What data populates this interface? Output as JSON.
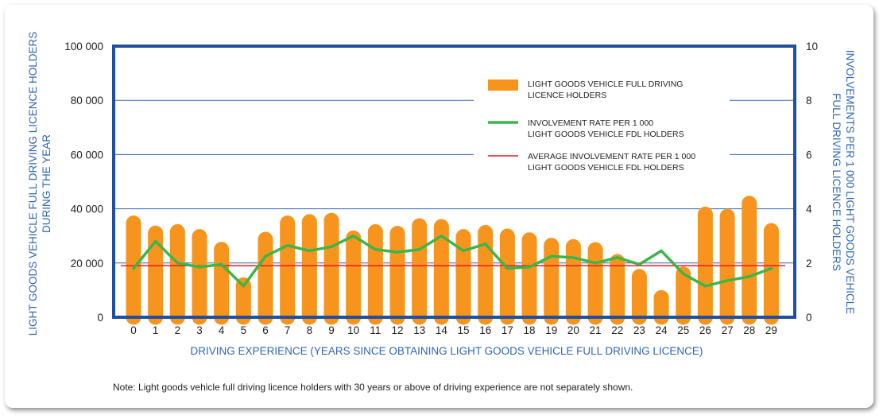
{
  "chart_data": {
    "type": "bar",
    "categories": [
      "0",
      "1",
      "2",
      "3",
      "4",
      "5",
      "6",
      "7",
      "8",
      "9",
      "10",
      "11",
      "12",
      "13",
      "14",
      "15",
      "16",
      "17",
      "18",
      "19",
      "20",
      "21",
      "22",
      "23",
      "24",
      "25",
      "26",
      "27",
      "28",
      "29"
    ],
    "series": [
      {
        "name": "LIGHT GOODS VEHICLE FULL DRIVING LICENCE HOLDERS",
        "type": "bar",
        "axis": "left",
        "color": "#f7941d",
        "values": [
          37500,
          33800,
          34300,
          32500,
          27800,
          14700,
          31500,
          37500,
          38000,
          38500,
          32000,
          34300,
          33700,
          36500,
          36200,
          32500,
          34000,
          32700,
          31300,
          29300,
          28800,
          27700,
          23300,
          17800,
          10000,
          18700,
          40800,
          40000,
          44800,
          34700
        ]
      },
      {
        "name": "INVOLVEMENT RATE PER 1 000 LIGHT GOODS VEHICLE FDL HOLDERS",
        "type": "line",
        "axis": "right",
        "color": "#3db54a",
        "values": [
          1.8,
          2.8,
          2.0,
          1.85,
          1.95,
          1.15,
          2.25,
          2.65,
          2.45,
          2.6,
          3.0,
          2.5,
          2.4,
          2.5,
          3.0,
          2.45,
          2.7,
          1.8,
          1.85,
          2.25,
          2.2,
          2.0,
          2.2,
          1.95,
          2.45,
          1.6,
          1.15,
          1.35,
          1.5,
          1.8
        ]
      },
      {
        "name": "AVERAGE INVOLVEMENT RATE PER 1 000 LIGHT GOODS VEHICLE FDL HOLDERS",
        "type": "line",
        "axis": "right",
        "color": "#e21c2b",
        "values": [
          1.9,
          1.9,
          1.9,
          1.9,
          1.9,
          1.9,
          1.9,
          1.9,
          1.9,
          1.9,
          1.9,
          1.9,
          1.9,
          1.9,
          1.9,
          1.9,
          1.9,
          1.9,
          1.9,
          1.9,
          1.9,
          1.9,
          1.9,
          1.9,
          1.9,
          1.9,
          1.9,
          1.9,
          1.9,
          1.9
        ]
      }
    ],
    "xlabel": "DRIVING EXPERIENCE (YEARS SINCE OBTAINING LIGHT GOODS VEHICLE FULL DRIVING LICENCE)",
    "ylabel_left": [
      "LIGHT GOODS VEHICLE FULL DRIVING LICENCE HOLDERS",
      "DURING THE YEAR"
    ],
    "ylabel_right": [
      "INVOLVEMENTS PER 1 000 LIGHT GOODS VEHICLE",
      "FULL DRIVING LICENCE  HOLDERS"
    ],
    "ylim_left": [
      0,
      100000
    ],
    "ylim_right": [
      0,
      10
    ],
    "yticks_left": [
      "0",
      "20 000",
      "40 000",
      "60 000",
      "80 000",
      "100 000"
    ],
    "yticks_right": [
      "0",
      "2",
      "4",
      "6",
      "8",
      "10"
    ],
    "grid": true,
    "legend_position": "top-right",
    "legend": [
      {
        "lines": [
          "LIGHT GOODS VEHICLE FULL DRIVING",
          "LICENCE HOLDERS"
        ],
        "marker": "bar",
        "color": "#f7941d"
      },
      {
        "lines": [
          "INVOLVEMENT RATE PER 1 000",
          "LIGHT GOODS VEHICLE FDL HOLDERS"
        ],
        "marker": "thick-line",
        "color": "#3db54a"
      },
      {
        "lines": [
          "AVERAGE INVOLVEMENT RATE PER 1 000",
          "LIGHT GOODS VEHICLE FDL HOLDERS"
        ],
        "marker": "thin-line",
        "color": "#e21c2b"
      }
    ]
  },
  "note": "Note: Light goods vehicle full driving licence holders with 30 years or above of driving experience are not separately shown.",
  "colors": {
    "frame": "#1f4ea3",
    "grid": "#2f66b4",
    "axis_title": "#2f66b4",
    "bar": "#f7941d",
    "rate_line": "#3db54a",
    "average_line": "#e21c2b"
  }
}
